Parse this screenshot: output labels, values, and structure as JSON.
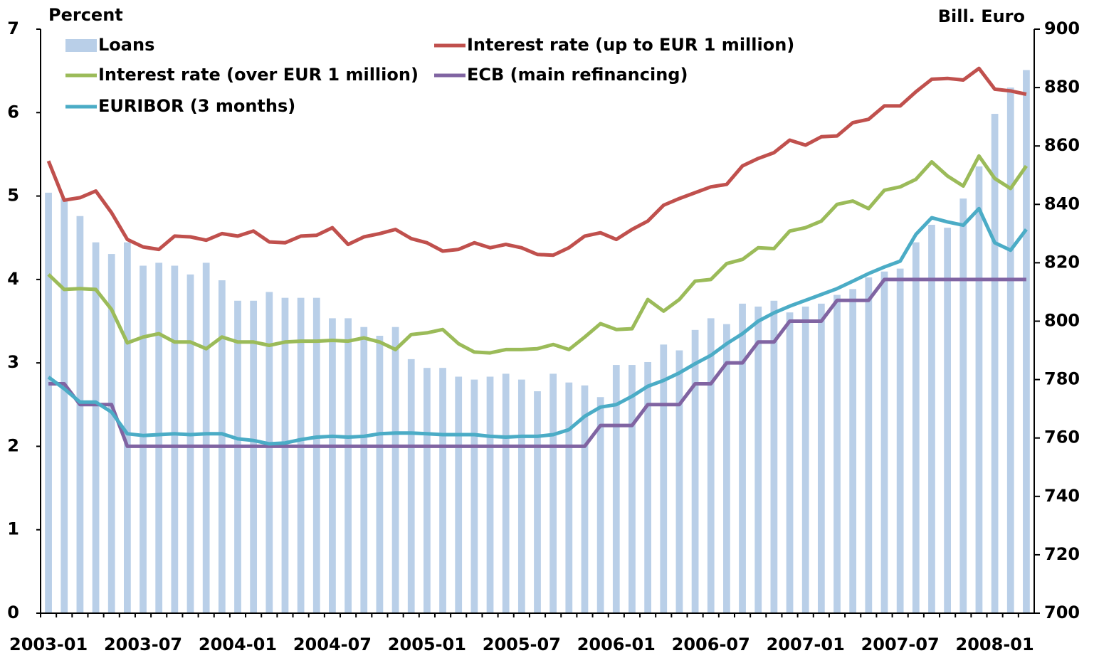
{
  "chart_data": {
    "type": "combo",
    "ylabel": "Percent",
    "y2label": "Bill. Euro",
    "categories": [
      "2003-01",
      null,
      null,
      null,
      null,
      null,
      "2003-07",
      null,
      null,
      null,
      null,
      null,
      "2004-01",
      null,
      null,
      null,
      null,
      null,
      "2004-07",
      null,
      null,
      null,
      null,
      null,
      "2005-01",
      null,
      null,
      null,
      null,
      null,
      "2005-07",
      null,
      null,
      null,
      null,
      null,
      "2006-01",
      null,
      null,
      null,
      null,
      null,
      "2006-07",
      null,
      null,
      null,
      null,
      null,
      "2007-01",
      null,
      null,
      null,
      null,
      null,
      "2007-07",
      null,
      null,
      null,
      null,
      null,
      "2008-01",
      null,
      null
    ],
    "ylim": [
      0,
      7
    ],
    "yticks": [
      0,
      1,
      2,
      3,
      4,
      5,
      6,
      7
    ],
    "y2lim": [
      700,
      900
    ],
    "y2ticks": [
      700,
      720,
      740,
      760,
      780,
      800,
      820,
      840,
      860,
      880,
      900
    ],
    "series": [
      {
        "name": "Loans",
        "type": "bar",
        "axis": "y2",
        "color": "#b9cfe8",
        "values": [
          844,
          842,
          836,
          827,
          823,
          827,
          819,
          820,
          819,
          816,
          820,
          814,
          807,
          807,
          810,
          808,
          808,
          808,
          801,
          801,
          798,
          795,
          798,
          787,
          784,
          784,
          781,
          780,
          781,
          782,
          780,
          776,
          782,
          779,
          778,
          774,
          785,
          785,
          786,
          792,
          790,
          797,
          801,
          799,
          806,
          805,
          807,
          803,
          805,
          806,
          809,
          811,
          815,
          817,
          818,
          827,
          833,
          832,
          842,
          853,
          871,
          880,
          886
        ]
      },
      {
        "name": "Interest rate (up to EUR 1 million)",
        "type": "line",
        "color": "#c0504d",
        "values": [
          5.42,
          4.95,
          4.98,
          5.06,
          4.8,
          4.48,
          4.39,
          4.36,
          4.52,
          4.51,
          4.47,
          4.55,
          4.52,
          4.58,
          4.45,
          4.44,
          4.52,
          4.53,
          4.62,
          4.42,
          4.51,
          4.55,
          4.6,
          4.49,
          4.44,
          4.34,
          4.36,
          4.44,
          4.38,
          4.42,
          4.38,
          4.3,
          4.29,
          4.38,
          4.52,
          4.56,
          4.48,
          4.6,
          4.7,
          4.89,
          4.97,
          5.04,
          5.11,
          5.14,
          5.36,
          5.45,
          5.52,
          5.67,
          5.61,
          5.71,
          5.72,
          5.88,
          5.92,
          6.08,
          6.08,
          6.25,
          6.4,
          6.41,
          6.39,
          6.53,
          6.28,
          6.26,
          6.22
        ]
      },
      {
        "name": "Interest rate (over EUR 1 million)",
        "type": "line",
        "color": "#9bbb59",
        "values": [
          4.06,
          3.88,
          3.89,
          3.88,
          3.64,
          3.24,
          3.31,
          3.35,
          3.25,
          3.25,
          3.17,
          3.31,
          3.25,
          3.25,
          3.21,
          3.25,
          3.26,
          3.26,
          3.27,
          3.26,
          3.3,
          3.25,
          3.16,
          3.34,
          3.36,
          3.4,
          3.23,
          3.13,
          3.12,
          3.16,
          3.16,
          3.17,
          3.22,
          3.16,
          3.31,
          3.47,
          3.4,
          3.41,
          3.76,
          3.62,
          3.76,
          3.98,
          4.0,
          4.19,
          4.24,
          4.38,
          4.37,
          4.58,
          4.62,
          4.7,
          4.9,
          4.94,
          4.85,
          5.07,
          5.11,
          5.2,
          5.41,
          5.24,
          5.12,
          5.48,
          5.21,
          5.09,
          5.36
        ]
      },
      {
        "name": "ECB (main refinancing)",
        "type": "line",
        "color": "#8064a2",
        "values": [
          2.75,
          2.75,
          2.5,
          2.5,
          2.5,
          2.0,
          2.0,
          2.0,
          2.0,
          2.0,
          2.0,
          2.0,
          2.0,
          2.0,
          2.0,
          2.0,
          2.0,
          2.0,
          2.0,
          2.0,
          2.0,
          2.0,
          2.0,
          2.0,
          2.0,
          2.0,
          2.0,
          2.0,
          2.0,
          2.0,
          2.0,
          2.0,
          2.0,
          2.0,
          2.0,
          2.25,
          2.25,
          2.25,
          2.5,
          2.5,
          2.5,
          2.75,
          2.75,
          3.0,
          3.0,
          3.25,
          3.25,
          3.5,
          3.5,
          3.5,
          3.75,
          3.75,
          3.75,
          4.0,
          4.0,
          4.0,
          4.0,
          4.0,
          4.0,
          4.0,
          4.0,
          4.0,
          4.0
        ]
      },
      {
        "name": "EURIBOR (3 months)",
        "type": "line",
        "color": "#4bacc6",
        "values": [
          2.83,
          2.69,
          2.53,
          2.53,
          2.41,
          2.15,
          2.13,
          2.14,
          2.15,
          2.14,
          2.15,
          2.15,
          2.09,
          2.07,
          2.03,
          2.04,
          2.08,
          2.11,
          2.12,
          2.11,
          2.12,
          2.15,
          2.16,
          2.16,
          2.15,
          2.14,
          2.14,
          2.14,
          2.12,
          2.11,
          2.12,
          2.12,
          2.14,
          2.2,
          2.36,
          2.47,
          2.5,
          2.6,
          2.72,
          2.79,
          2.88,
          2.99,
          3.09,
          3.23,
          3.35,
          3.5,
          3.6,
          3.68,
          3.75,
          3.82,
          3.89,
          3.98,
          4.07,
          4.15,
          4.22,
          4.54,
          4.74,
          4.69,
          4.65,
          4.85,
          4.44,
          4.35,
          4.6
        ]
      }
    ]
  }
}
